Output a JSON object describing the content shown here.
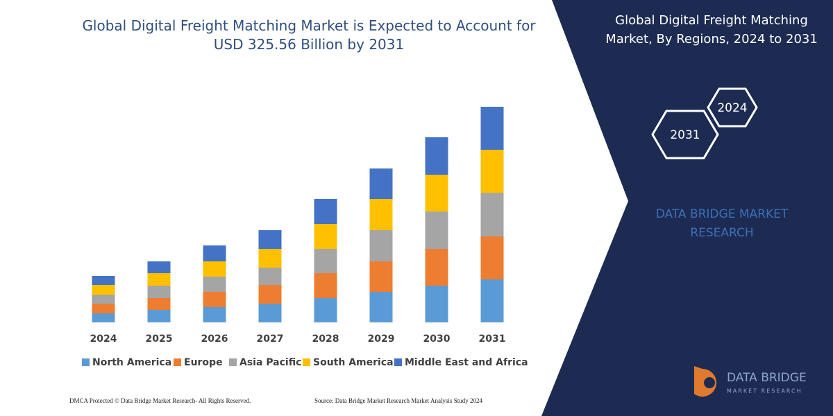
{
  "chart_data": {
    "type": "stacked-bar",
    "title": "Global Digital Freight Matching Market is Expected to Account for USD 325.56 Billion by 2031",
    "categories": [
      "2024",
      "2025",
      "2026",
      "2027",
      "2028",
      "2029",
      "2030",
      "2031"
    ],
    "series": [
      {
        "name": "North America",
        "color": "#5b9bd5",
        "values": [
          13,
          18,
          22,
          27,
          35,
          44,
          53,
          62
        ]
      },
      {
        "name": "Europe",
        "color": "#ed7d31",
        "values": [
          14,
          17,
          22,
          27,
          36,
          44,
          53,
          62
        ]
      },
      {
        "name": "Asia Pacific",
        "color": "#a5a5a5",
        "values": [
          13,
          18,
          22,
          25,
          35,
          45,
          54,
          63
        ]
      },
      {
        "name": "South America",
        "color": "#ffc000",
        "values": [
          14,
          18,
          22,
          27,
          36,
          45,
          53,
          62
        ]
      },
      {
        "name": "Middle East and Africa",
        "color": "#4472c4",
        "values": [
          13,
          17,
          23,
          27,
          36,
          44,
          54,
          62
        ]
      }
    ]
  },
  "panel": {
    "title": "Global Digital Freight Matching Market, By Regions, 2024 to 2031",
    "hexagons": [
      "2024",
      "2031"
    ],
    "brand": "DATA BRIDGE MARKET RESEARCH",
    "logo_name": "DATA BRIDGE",
    "logo_sub": "MARKET RESEARCH"
  },
  "footer": {
    "left": "DMCA Protected © Data Bridge Market Research-  All Rights Reserved.",
    "right": "Source: Data Bridge Market Research  Market Analysis Study 2024"
  }
}
